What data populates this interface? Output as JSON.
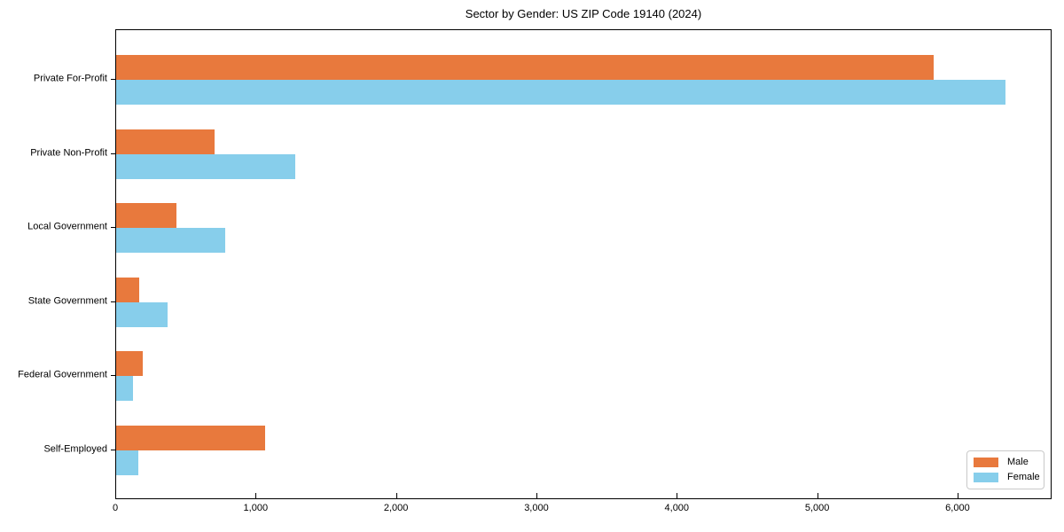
{
  "chart_data": {
    "type": "bar",
    "orientation": "horizontal",
    "title": "Sector by Gender: US ZIP Code 19140 (2024)",
    "xlabel": "",
    "ylabel": "",
    "categories": [
      "Private For-Profit",
      "Private Non-Profit",
      "Local Government",
      "State Government",
      "Federal Government",
      "Self-Employed"
    ],
    "series": [
      {
        "name": "Male",
        "color": "#e8793d",
        "values": [
          5835,
          700,
          430,
          165,
          190,
          1065
        ]
      },
      {
        "name": "Female",
        "color": "#87ceeb",
        "values": [
          6345,
          1280,
          780,
          365,
          120,
          160
        ]
      }
    ],
    "xlim": [
      0,
      6670
    ],
    "x_ticks": [
      0,
      1000,
      2000,
      3000,
      4000,
      5000,
      6000
    ],
    "x_tick_labels": [
      "0",
      "1,000",
      "2,000",
      "3,000",
      "4,000",
      "5,000",
      "6,000"
    ],
    "grid": false,
    "legend": {
      "position": "lower right",
      "entries": [
        {
          "label": "Male",
          "color": "#e8793d"
        },
        {
          "label": "Female",
          "color": "#87ceeb"
        }
      ]
    }
  }
}
